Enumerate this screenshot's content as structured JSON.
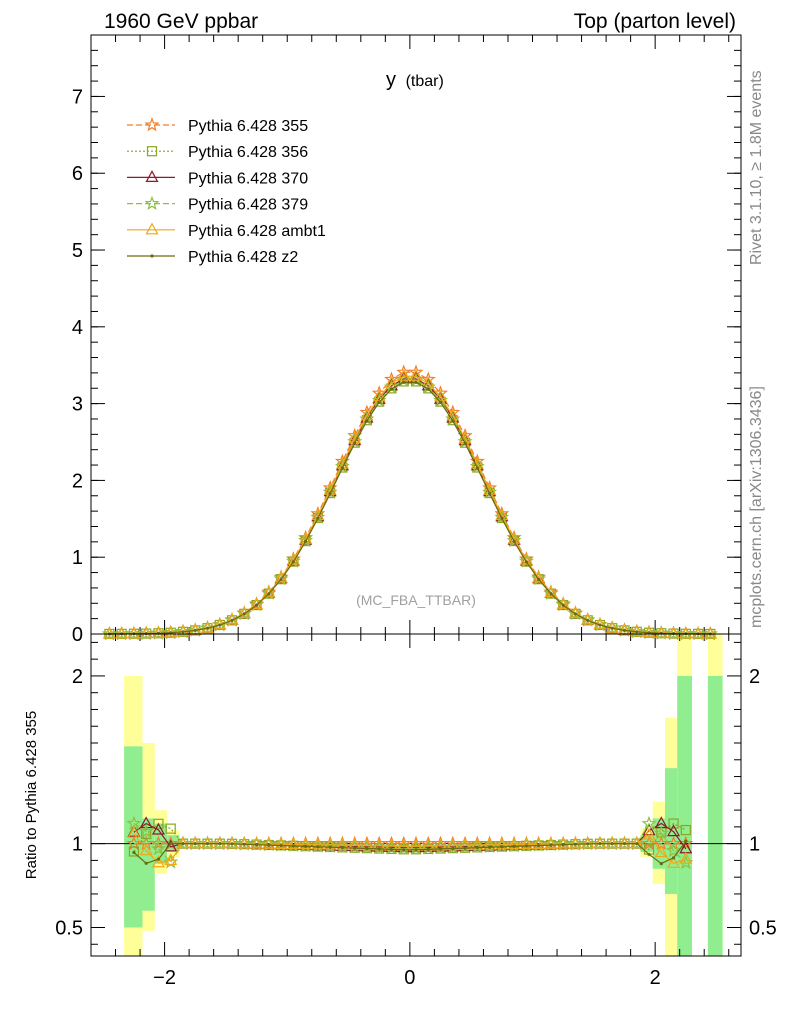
{
  "header": {
    "left_title": "1960 GeV ppbar",
    "right_title": "Top (parton level)"
  },
  "side_text": {
    "rivet": "Rivet 3.1.10, ≥ 1.8M events",
    "source": "mcplots.cern.ch [arXiv:1306.3436]"
  },
  "chart_data": {
    "type": "line",
    "title": "y",
    "title_suffix": "(tbar)",
    "watermark": "(MC_FBA_TTBAR)",
    "xlim": [
      -2.6,
      2.7
    ],
    "ylim": [
      0,
      7.8
    ],
    "xticks": [
      -2,
      0,
      2
    ],
    "yticks": [
      0,
      1,
      2,
      3,
      4,
      5,
      6,
      7
    ],
    "legend_position": "top-left",
    "series": [
      {
        "name": "Pythia 6.428 355",
        "color": "#f07f2a",
        "dash": "6,3",
        "marker": "star"
      },
      {
        "name": "Pythia 6.428 356",
        "color": "#8aa520",
        "dash": "2,2",
        "marker": "square"
      },
      {
        "name": "Pythia 6.428 370",
        "color": "#8b1a2a",
        "dash": "",
        "marker": "triangle"
      },
      {
        "name": "Pythia 6.428 379",
        "color": "#90c040",
        "dash": "6,3",
        "marker": "star"
      },
      {
        "name": "Pythia 6.428 ambt1",
        "color": "#f0a818",
        "dash": "",
        "marker": "triangle"
      },
      {
        "name": "Pythia 6.428 z2",
        "color": "#6b6b10",
        "dash": "",
        "marker": "dot"
      }
    ],
    "curve_model": {
      "peak": 3.42,
      "sigma": 0.6,
      "xmin": -2.45,
      "xmax": 2.45,
      "step": 0.1
    },
    "series_scales": [
      1.0,
      0.965,
      0.975,
      0.97,
      0.985,
      0.962
    ],
    "ratio": {
      "ylabel": "Ratio to Pythia 6.428 355",
      "ylim": [
        0.33,
        2.25
      ],
      "yticks": [
        0.5,
        1,
        2
      ],
      "reference": 1,
      "bands": [
        {
          "x0": -2.33,
          "x1": -2.18,
          "inner": [
            0.5,
            1.58
          ],
          "outer": [
            0.33,
            2.0
          ]
        },
        {
          "x0": -2.18,
          "x1": -2.08,
          "inner": [
            0.6,
            1.15
          ],
          "outer": [
            0.48,
            1.6
          ]
        },
        {
          "x0": -2.08,
          "x1": -1.98,
          "inner": [
            0.88,
            1.12
          ],
          "outer": [
            0.82,
            1.2
          ]
        },
        {
          "x0": -1.98,
          "x1": -1.88,
          "inner": [
            0.95,
            1.05
          ],
          "outer": [
            0.92,
            1.08
          ]
        },
        {
          "x0": 1.88,
          "x1": 1.98,
          "inner": [
            0.95,
            1.05
          ],
          "outer": [
            0.92,
            1.09
          ]
        },
        {
          "x0": 1.98,
          "x1": 2.08,
          "inner": [
            0.85,
            1.15
          ],
          "outer": [
            0.76,
            1.25
          ]
        },
        {
          "x0": 2.08,
          "x1": 2.18,
          "inner": [
            0.7,
            1.45
          ],
          "outer": [
            0.33,
            1.75
          ]
        },
        {
          "x0": 2.18,
          "x1": 2.3,
          "inner": [
            0.33,
            2.0
          ],
          "outer": [
            0.33,
            2.25
          ]
        },
        {
          "x0": 2.43,
          "x1": 2.55,
          "inner": [
            0.33,
            2.0
          ],
          "outer": [
            0.33,
            2.25
          ]
        }
      ]
    }
  }
}
